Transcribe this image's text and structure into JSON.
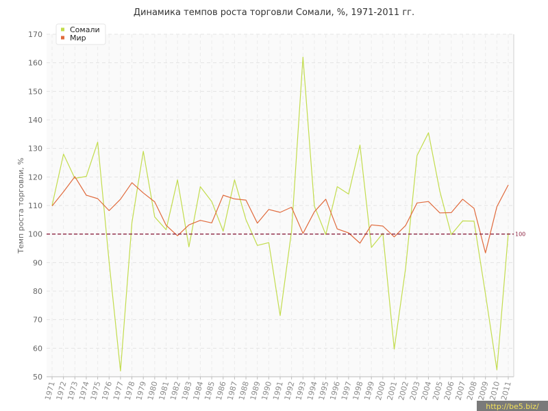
{
  "chart_data": {
    "type": "line",
    "title": "Динамика темпов роста торговли Сомали, %, 1971-2011 гг.",
    "xlabel": "",
    "ylabel": "Темп роста торговли, %",
    "ylim": [
      50,
      170
    ],
    "yticks": [
      50,
      60,
      70,
      80,
      90,
      100,
      110,
      120,
      130,
      140,
      150,
      160,
      170
    ],
    "categories": [
      "1971",
      "1972",
      "1973",
      "1974",
      "1975",
      "1976",
      "1977",
      "1978",
      "1979",
      "1980",
      "1981",
      "1982",
      "1983",
      "1984",
      "1985",
      "1986",
      "1987",
      "1988",
      "1989",
      "1990",
      "1991",
      "1992",
      "1993",
      "1994",
      "1995",
      "1996",
      "1997",
      "1998",
      "1999",
      "2000",
      "2001",
      "2002",
      "2003",
      "2004",
      "2005",
      "2006",
      "2007",
      "2008",
      "2009",
      "2010",
      "2011"
    ],
    "series": [
      {
        "name": "Сомали",
        "color": "#c2dc4c",
        "values": [
          110,
          128,
          119.5,
          120.2,
          132.2,
          90.2,
          52,
          104,
          129,
          106,
          101.5,
          119,
          95.5,
          116.6,
          111.4,
          101,
          119,
          105,
          96,
          97,
          71.4,
          101,
          162,
          109.8,
          99.8,
          116.6,
          114,
          131.2,
          95.3,
          100.2,
          59.7,
          88,
          127.5,
          135.5,
          115,
          99.8,
          104.6,
          104.5,
          79,
          52.4,
          100.3
        ]
      },
      {
        "name": "Мир",
        "color": "#e06a3c",
        "values": [
          109.8,
          114.8,
          120.1,
          113.6,
          112.4,
          108.2,
          112.2,
          118,
          114.4,
          111.3,
          103.1,
          99.4,
          103.2,
          104.8,
          103.9,
          113.6,
          112.3,
          111.9,
          103.8,
          108.6,
          107.6,
          109.4,
          100.2,
          107.8,
          112.2,
          101.8,
          100.4,
          96.8,
          103.2,
          102.8,
          99,
          103,
          110.9,
          111.4,
          107.4,
          107.5,
          112.2,
          109,
          93.4,
          109.6,
          117.2
        ]
      }
    ],
    "reference_line": {
      "value": 100,
      "label": "100",
      "color": "#8b2240"
    },
    "grid": true,
    "legend_position": "top-left"
  },
  "watermark": "http://be5.biz/"
}
